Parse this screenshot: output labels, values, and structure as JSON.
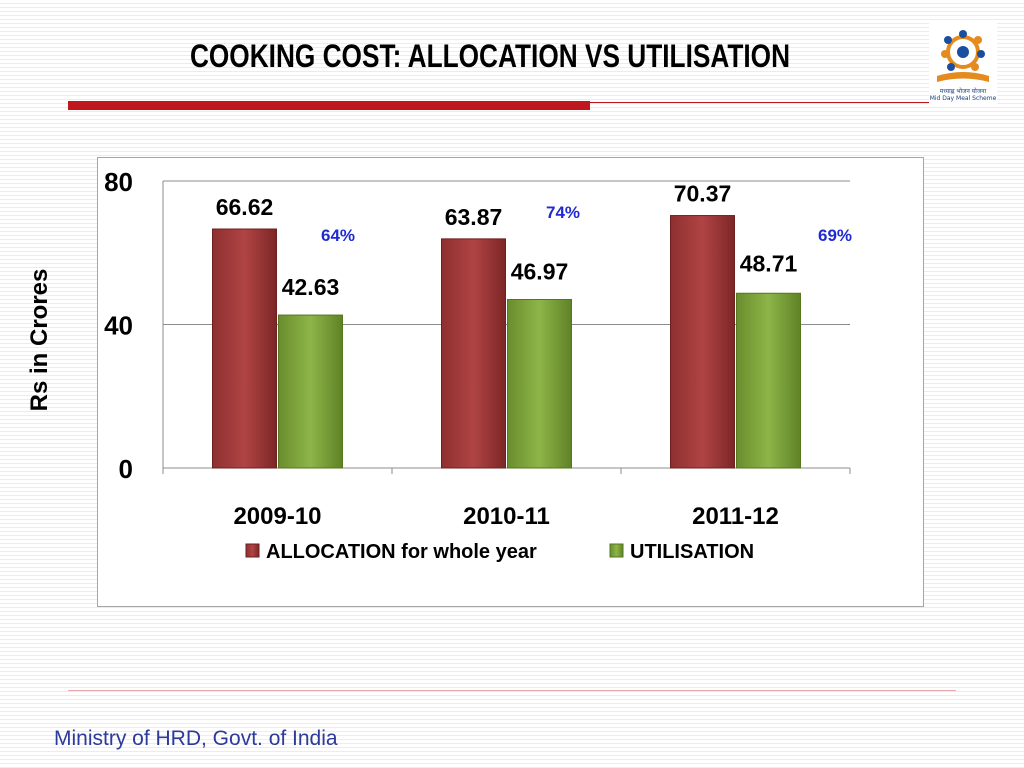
{
  "slide": {
    "title": "COOKING COST: ALLOCATION VS UTILISATION",
    "footer": "Ministry of HRD, Govt. of India",
    "logo_caption_line1": "मध्याह्न भोजन योजना",
    "logo_caption_line2": "Mid Day Meal Scheme"
  },
  "colors": {
    "title_rule": "#c0161e",
    "allocation": "#a33b3b",
    "utilisation": "#7ea33c",
    "percent_text": "#1f2bd1",
    "footer_text": "#2e3a9a"
  },
  "chart_data": {
    "type": "bar",
    "title": "",
    "xlabel": "",
    "ylabel": "Rs in Crores",
    "categories": [
      "2009-10",
      "2010-11",
      "2011-12"
    ],
    "series": [
      {
        "name": "ALLOCATION for whole year",
        "values": [
          66.62,
          63.87,
          70.37
        ],
        "labels": [
          "66.62",
          "63.87",
          "70.37"
        ]
      },
      {
        "name": "UTILISATION",
        "values": [
          42.63,
          46.97,
          48.71
        ],
        "labels": [
          "42.63",
          "46.97",
          "48.71"
        ]
      }
    ],
    "percent_annotations": [
      "64%",
      "74%",
      "69%"
    ],
    "ylim": [
      0,
      80
    ],
    "yticks": [
      "0",
      "40",
      "80"
    ],
    "grid": true,
    "legend": "bottom"
  }
}
